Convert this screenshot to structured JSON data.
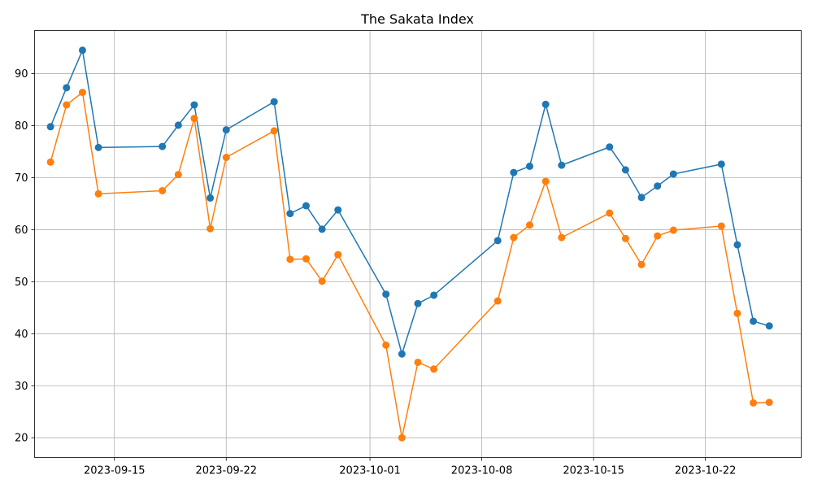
{
  "chart_data": {
    "type": "line",
    "title": "The Sakata Index",
    "xlabel": "",
    "ylabel": "",
    "x_tick_labels": [
      "2023-09-15",
      "2023-09-22",
      "2023-10-01",
      "2023-10-08",
      "2023-10-15",
      "2023-10-22"
    ],
    "y_tick_labels": [
      "20",
      "30",
      "40",
      "50",
      "60",
      "70",
      "80",
      "90"
    ],
    "y_ticks": [
      20,
      30,
      40,
      50,
      60,
      70,
      80,
      90
    ],
    "ylim": [
      16.2,
      98.3
    ],
    "xlim": [
      "2023-09-10",
      "2023-10-28"
    ],
    "grid": true,
    "x": [
      "2023-09-11",
      "2023-09-12",
      "2023-09-13",
      "2023-09-14",
      "2023-09-18",
      "2023-09-19",
      "2023-09-20",
      "2023-09-21",
      "2023-09-22",
      "2023-09-25",
      "2023-09-26",
      "2023-09-27",
      "2023-09-28",
      "2023-09-29",
      "2023-10-02",
      "2023-10-03",
      "2023-10-04",
      "2023-10-05",
      "2023-10-09",
      "2023-10-10",
      "2023-10-11",
      "2023-10-12",
      "2023-10-13",
      "2023-10-16",
      "2023-10-17",
      "2023-10-18",
      "2023-10-19",
      "2023-10-20",
      "2023-10-23",
      "2023-10-24",
      "2023-10-25",
      "2023-10-26"
    ],
    "series": [
      {
        "color": "#1f77b4",
        "values": [
          79.8,
          87.3,
          94.5,
          75.8,
          76.0,
          80.1,
          84.0,
          66.1,
          79.2,
          84.6,
          63.1,
          64.6,
          60.1,
          63.8,
          47.6,
          36.1,
          45.8,
          47.4,
          57.9,
          71.0,
          72.2,
          84.1,
          72.4,
          75.9,
          71.5,
          66.2,
          68.4,
          70.7,
          72.6,
          57.1,
          42.4,
          41.5
        ]
      },
      {
        "color": "#ff7f0e",
        "values": [
          73.0,
          84.0,
          86.4,
          66.9,
          67.5,
          70.6,
          81.4,
          60.2,
          73.9,
          79.0,
          54.3,
          54.4,
          50.1,
          55.2,
          37.8,
          20.0,
          34.5,
          33.2,
          46.3,
          58.5,
          60.9,
          69.3,
          58.5,
          63.2,
          58.3,
          53.3,
          58.8,
          59.9,
          60.7,
          43.9,
          26.7,
          26.8
        ]
      }
    ]
  }
}
